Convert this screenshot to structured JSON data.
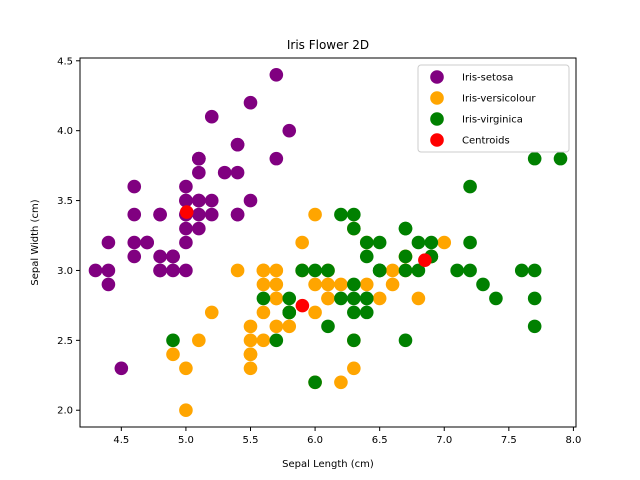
{
  "chart_data": {
    "type": "scatter",
    "title": "Iris Flower 2D",
    "xlabel": "Sepal Length (cm)",
    "ylabel": "Sepal Width (cm)",
    "xlim": [
      4.18,
      8.02
    ],
    "ylim": [
      1.88,
      4.52
    ],
    "xticks": [
      4.5,
      5.0,
      5.5,
      6.0,
      6.5,
      7.0,
      7.5,
      8.0
    ],
    "yticks": [
      2.0,
      2.5,
      3.0,
      3.5,
      4.0,
      4.5
    ],
    "grid": false,
    "legend_position": "top-right",
    "series": [
      {
        "name": "Iris-setosa",
        "color": "#800080",
        "points": [
          [
            5.1,
            3.5
          ],
          [
            4.9,
            3.0
          ],
          [
            4.7,
            3.2
          ],
          [
            4.6,
            3.1
          ],
          [
            5.0,
            3.6
          ],
          [
            5.4,
            3.9
          ],
          [
            4.6,
            3.4
          ],
          [
            5.0,
            3.4
          ],
          [
            4.4,
            2.9
          ],
          [
            4.9,
            3.1
          ],
          [
            5.4,
            3.7
          ],
          [
            4.8,
            3.4
          ],
          [
            4.8,
            3.0
          ],
          [
            4.3,
            3.0
          ],
          [
            5.8,
            4.0
          ],
          [
            5.7,
            4.4
          ],
          [
            5.4,
            3.9
          ],
          [
            5.1,
            3.5
          ],
          [
            5.7,
            3.8
          ],
          [
            5.1,
            3.8
          ],
          [
            5.4,
            3.4
          ],
          [
            5.1,
            3.7
          ],
          [
            4.6,
            3.6
          ],
          [
            5.1,
            3.3
          ],
          [
            4.8,
            3.4
          ],
          [
            5.0,
            3.0
          ],
          [
            5.0,
            3.4
          ],
          [
            5.2,
            3.5
          ],
          [
            5.2,
            3.4
          ],
          [
            4.7,
            3.2
          ],
          [
            4.8,
            3.1
          ],
          [
            5.4,
            3.4
          ],
          [
            5.2,
            4.1
          ],
          [
            5.5,
            4.2
          ],
          [
            4.9,
            3.1
          ],
          [
            5.0,
            3.2
          ],
          [
            5.5,
            3.5
          ],
          [
            4.9,
            3.1
          ],
          [
            4.4,
            3.0
          ],
          [
            5.1,
            3.4
          ],
          [
            5.0,
            3.5
          ],
          [
            4.5,
            2.3
          ],
          [
            4.4,
            3.2
          ],
          [
            5.0,
            3.5
          ],
          [
            5.1,
            3.8
          ],
          [
            4.8,
            3.0
          ],
          [
            5.1,
            3.8
          ],
          [
            4.6,
            3.2
          ],
          [
            5.3,
            3.7
          ],
          [
            5.0,
            3.3
          ]
        ]
      },
      {
        "name": "Iris-versicolour",
        "color": "#FFA500",
        "points": [
          [
            7.0,
            3.2
          ],
          [
            6.4,
            3.2
          ],
          [
            6.9,
            3.1
          ],
          [
            5.5,
            2.3
          ],
          [
            6.5,
            2.8
          ],
          [
            5.7,
            2.8
          ],
          [
            6.3,
            3.3
          ],
          [
            4.9,
            2.4
          ],
          [
            6.6,
            2.9
          ],
          [
            5.2,
            2.7
          ],
          [
            5.0,
            2.0
          ],
          [
            5.9,
            3.0
          ],
          [
            6.0,
            2.2
          ],
          [
            6.1,
            2.9
          ],
          [
            5.6,
            2.9
          ],
          [
            6.7,
            3.1
          ],
          [
            5.6,
            3.0
          ],
          [
            5.8,
            2.7
          ],
          [
            6.2,
            2.2
          ],
          [
            5.6,
            2.5
          ],
          [
            5.9,
            3.2
          ],
          [
            6.1,
            2.8
          ],
          [
            6.3,
            2.5
          ],
          [
            6.1,
            2.8
          ],
          [
            6.4,
            2.9
          ],
          [
            6.6,
            3.0
          ],
          [
            6.8,
            2.8
          ],
          [
            6.7,
            3.0
          ],
          [
            6.0,
            2.9
          ],
          [
            5.7,
            2.6
          ],
          [
            5.5,
            2.4
          ],
          [
            5.5,
            2.4
          ],
          [
            5.8,
            2.7
          ],
          [
            6.0,
            2.7
          ],
          [
            5.4,
            3.0
          ],
          [
            6.0,
            3.4
          ],
          [
            6.7,
            3.1
          ],
          [
            6.3,
            2.3
          ],
          [
            5.6,
            3.0
          ],
          [
            5.5,
            2.5
          ],
          [
            5.5,
            2.6
          ],
          [
            6.1,
            3.0
          ],
          [
            5.8,
            2.6
          ],
          [
            5.0,
            2.3
          ],
          [
            5.6,
            2.7
          ],
          [
            5.7,
            3.0
          ],
          [
            5.7,
            2.9
          ],
          [
            6.2,
            2.9
          ],
          [
            5.1,
            2.5
          ],
          [
            5.7,
            2.8
          ]
        ]
      },
      {
        "name": "Iris-virginica",
        "color": "#008000",
        "points": [
          [
            6.3,
            3.3
          ],
          [
            5.8,
            2.7
          ],
          [
            7.1,
            3.0
          ],
          [
            6.3,
            2.9
          ],
          [
            6.5,
            3.0
          ],
          [
            7.6,
            3.0
          ],
          [
            4.9,
            2.5
          ],
          [
            7.3,
            2.9
          ],
          [
            6.7,
            2.5
          ],
          [
            7.2,
            3.6
          ],
          [
            6.5,
            3.2
          ],
          [
            6.4,
            2.7
          ],
          [
            6.8,
            3.0
          ],
          [
            5.7,
            2.5
          ],
          [
            5.8,
            2.8
          ],
          [
            6.4,
            3.2
          ],
          [
            6.5,
            3.0
          ],
          [
            7.7,
            3.8
          ],
          [
            7.7,
            2.6
          ],
          [
            6.0,
            2.2
          ],
          [
            6.9,
            3.2
          ],
          [
            5.6,
            2.8
          ],
          [
            7.7,
            2.8
          ],
          [
            6.3,
            2.7
          ],
          [
            6.7,
            3.3
          ],
          [
            7.2,
            3.2
          ],
          [
            6.2,
            2.8
          ],
          [
            6.1,
            3.0
          ],
          [
            6.4,
            2.8
          ],
          [
            7.2,
            3.0
          ],
          [
            7.4,
            2.8
          ],
          [
            7.9,
            3.8
          ],
          [
            6.4,
            2.8
          ],
          [
            6.3,
            2.8
          ],
          [
            6.1,
            2.6
          ],
          [
            7.7,
            3.0
          ],
          [
            6.3,
            3.4
          ],
          [
            6.4,
            3.1
          ],
          [
            6.0,
            3.0
          ],
          [
            6.9,
            3.1
          ],
          [
            6.7,
            3.1
          ],
          [
            6.9,
            3.1
          ],
          [
            5.8,
            2.7
          ],
          [
            6.8,
            3.2
          ],
          [
            6.7,
            3.3
          ],
          [
            6.7,
            3.0
          ],
          [
            6.3,
            2.5
          ],
          [
            6.5,
            3.0
          ],
          [
            6.2,
            3.4
          ],
          [
            5.9,
            3.0
          ]
        ]
      },
      {
        "name": "Centroids",
        "color": "#FF0000",
        "points": [
          [
            5.006,
            3.418
          ],
          [
            5.9016,
            2.7484
          ],
          [
            6.85,
            3.0737
          ]
        ]
      }
    ]
  }
}
